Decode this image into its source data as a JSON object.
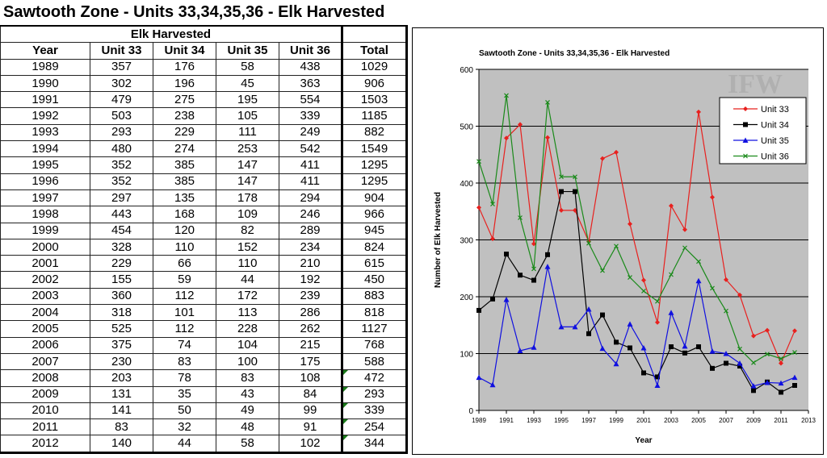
{
  "title": "Sawtooth Zone - Units 33,34,35,36 - Elk Harvested",
  "table": {
    "group_header": "Elk Harvested",
    "columns": [
      "Year",
      "Unit 33",
      "Unit 34",
      "Unit 35",
      "Unit 36",
      "Total"
    ],
    "rows": [
      [
        "1989",
        "357",
        "176",
        "58",
        "438",
        "1029"
      ],
      [
        "1990",
        "302",
        "196",
        "45",
        "363",
        "906"
      ],
      [
        "1991",
        "479",
        "275",
        "195",
        "554",
        "1503"
      ],
      [
        "1992",
        "503",
        "238",
        "105",
        "339",
        "1185"
      ],
      [
        "1993",
        "293",
        "229",
        "111",
        "249",
        "882"
      ],
      [
        "1994",
        "480",
        "274",
        "253",
        "542",
        "1549"
      ],
      [
        "1995",
        "352",
        "385",
        "147",
        "411",
        "1295"
      ],
      [
        "1996",
        "352",
        "385",
        "147",
        "411",
        "1295"
      ],
      [
        "1997",
        "297",
        "135",
        "178",
        "294",
        "904"
      ],
      [
        "1998",
        "443",
        "168",
        "109",
        "246",
        "966"
      ],
      [
        "1999",
        "454",
        "120",
        "82",
        "289",
        "945"
      ],
      [
        "2000",
        "328",
        "110",
        "152",
        "234",
        "824"
      ],
      [
        "2001",
        "229",
        "66",
        "110",
        "210",
        "615"
      ],
      [
        "2002",
        "155",
        "59",
        "44",
        "192",
        "450"
      ],
      [
        "2003",
        "360",
        "112",
        "172",
        "239",
        "883"
      ],
      [
        "2004",
        "318",
        "101",
        "113",
        "286",
        "818"
      ],
      [
        "2005",
        "525",
        "112",
        "228",
        "262",
        "1127"
      ],
      [
        "2006",
        "375",
        "74",
        "104",
        "215",
        "768"
      ],
      [
        "2007",
        "230",
        "83",
        "100",
        "175",
        "588"
      ],
      [
        "2008",
        "203",
        "78",
        "83",
        "108",
        "472"
      ],
      [
        "2009",
        "131",
        "35",
        "43",
        "84",
        "293"
      ],
      [
        "2010",
        "141",
        "50",
        "49",
        "99",
        "339"
      ],
      [
        "2011",
        "83",
        "32",
        "48",
        "91",
        "254"
      ],
      [
        "2012",
        "140",
        "44",
        "58",
        "102",
        "344"
      ]
    ],
    "flagged_rows": [
      19,
      20,
      21,
      22,
      23
    ]
  },
  "chart_data": {
    "type": "line",
    "title": "Sawtooth Zone - Units 33,34,35,36 - Elk Harvested",
    "xlabel": "Year",
    "ylabel": "Number of Elk Harvested",
    "x": [
      1989,
      1990,
      1991,
      1992,
      1993,
      1994,
      1995,
      1996,
      1997,
      1998,
      1999,
      2000,
      2001,
      2002,
      2003,
      2004,
      2005,
      2006,
      2007,
      2008,
      2009,
      2010,
      2011,
      2012
    ],
    "xlim": [
      1989,
      2013
    ],
    "ylim": [
      0,
      600
    ],
    "xticks": [
      "1989",
      "1991",
      "1993",
      "1995",
      "1997",
      "1999",
      "2001",
      "2003",
      "2005",
      "2007",
      "2009",
      "2011",
      "2013"
    ],
    "yticks": [
      "0",
      "100",
      "200",
      "300",
      "400",
      "500",
      "600"
    ],
    "grid": "horizontal",
    "legend": "top-right",
    "background": "#c0c0c0",
    "series": [
      {
        "name": "Unit 33",
        "color": "#e8201e",
        "marker": "diamond",
        "values": [
          357,
          302,
          479,
          503,
          293,
          480,
          352,
          352,
          297,
          443,
          454,
          328,
          229,
          155,
          360,
          318,
          525,
          375,
          230,
          203,
          131,
          141,
          83,
          140
        ]
      },
      {
        "name": "Unit 34",
        "color": "#000000",
        "marker": "square",
        "values": [
          176,
          196,
          275,
          238,
          229,
          274,
          385,
          385,
          135,
          168,
          120,
          110,
          66,
          59,
          112,
          101,
          112,
          74,
          83,
          78,
          35,
          50,
          32,
          44
        ]
      },
      {
        "name": "Unit 35",
        "color": "#1010e0",
        "marker": "triangle",
        "values": [
          58,
          45,
          195,
          105,
          111,
          253,
          147,
          147,
          178,
          109,
          82,
          152,
          110,
          44,
          172,
          113,
          228,
          104,
          100,
          83,
          43,
          49,
          48,
          58
        ]
      },
      {
        "name": "Unit 36",
        "color": "#1a8a1a",
        "marker": "x",
        "values": [
          438,
          363,
          554,
          339,
          249,
          542,
          411,
          411,
          294,
          246,
          289,
          234,
          210,
          192,
          239,
          286,
          262,
          215,
          175,
          108,
          84,
          99,
          91,
          102
        ]
      }
    ]
  }
}
